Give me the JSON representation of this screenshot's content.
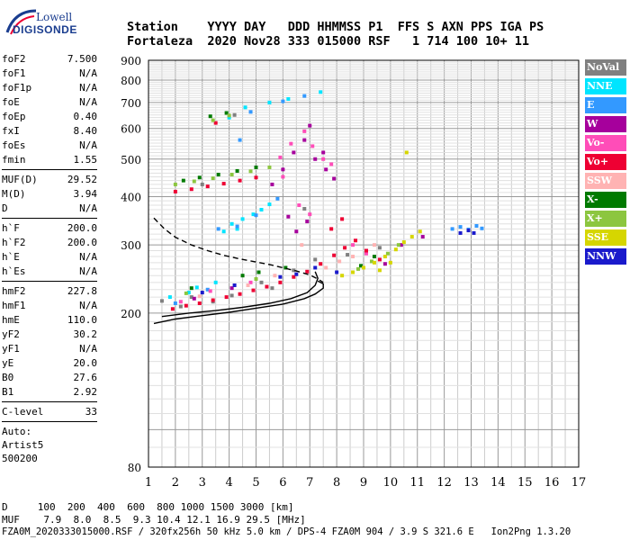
{
  "logo": {
    "line1": "Lowell",
    "line2": "DIGISONDE"
  },
  "header": {
    "line1": "Station    YYYY DAY   DDD HHMMSS P1  FFS S AXN PPS IGA PS",
    "line2": "Fortaleza  2020 Nov28 333 015000 RSF   1 714 100 10+ 11"
  },
  "params": {
    "group1": [
      {
        "name": "foF2",
        "value": "7.500"
      },
      {
        "name": "foF1",
        "value": "N/A"
      },
      {
        "name": "foF1p",
        "value": "N/A"
      },
      {
        "name": "foE",
        "value": "N/A"
      },
      {
        "name": "foEp",
        "value": "0.40"
      },
      {
        "name": "fxI",
        "value": "8.40"
      },
      {
        "name": "foEs",
        "value": "N/A"
      },
      {
        "name": "fmin",
        "value": "1.55"
      }
    ],
    "group2": [
      {
        "name": "MUF(D)",
        "value": "29.52"
      },
      {
        "name": "M(D)",
        "value": "3.94"
      },
      {
        "name": "D",
        "value": "N/A"
      }
    ],
    "group3": [
      {
        "name": "h`F",
        "value": "200.0"
      },
      {
        "name": "h`F2",
        "value": "200.0"
      },
      {
        "name": "h`E",
        "value": "N/A"
      },
      {
        "name": "h`Es",
        "value": "N/A"
      }
    ],
    "group4": [
      {
        "name": "hmF2",
        "value": "227.8"
      },
      {
        "name": "hmF1",
        "value": "N/A"
      },
      {
        "name": "hmE",
        "value": "110.0"
      },
      {
        "name": "yF2",
        "value": "30.2"
      },
      {
        "name": "yF1",
        "value": "N/A"
      },
      {
        "name": "yE",
        "value": "20.0"
      },
      {
        "name": "B0",
        "value": "27.6"
      },
      {
        "name": "B1",
        "value": "2.92"
      }
    ],
    "group5": [
      {
        "name": "C-level",
        "value": "33"
      }
    ],
    "auto": [
      "Auto:",
      "Artist5",
      "500200"
    ]
  },
  "legend": [
    {
      "label": "NoVal",
      "bg": "#808080",
      "fg": "#ffffff"
    },
    {
      "label": "NNE",
      "bg": "#00e5ff",
      "fg": "#ffffff"
    },
    {
      "label": "E",
      "bg": "#3399ff",
      "fg": "#ffffff"
    },
    {
      "label": "W",
      "bg": "#a6009c",
      "fg": "#ffffff"
    },
    {
      "label": "Vo-",
      "bg": "#ff4db8",
      "fg": "#ffffff"
    },
    {
      "label": "Vo+",
      "bg": "#ee0033",
      "fg": "#ffffff"
    },
    {
      "label": "SSW",
      "bg": "#ffb3b3",
      "fg": "#ffffff"
    },
    {
      "label": "X-",
      "bg": "#007a00",
      "fg": "#ffffff"
    },
    {
      "label": "X+",
      "bg": "#8cc63f",
      "fg": "#ffffff"
    },
    {
      "label": "SSE",
      "bg": "#d6d600",
      "fg": "#ffffff"
    },
    {
      "label": "NNW",
      "bg": "#1a1acc",
      "fg": "#ffffff"
    }
  ],
  "footer": {
    "line1": "D     100  200  400  600  800 1000 1500 3000 [km]",
    "line2": "MUF    7.9  8.0  8.5  9.3 10.4 12.1 16.9 29.5 [MHz]",
    "line3": "FZA0M_2020333015000.RSF / 320fx256h 50 kHz 5.0 km / DPS-4 FZA0M 904 / 3.9 S 321.6 E   Ion2Png 1.3.20"
  },
  "chart_data": {
    "type": "scatter",
    "title": "",
    "xlabel": "",
    "ylabel": "",
    "x_unit": "MHz (implicit)",
    "y_unit": "km (implicit)",
    "xlim": [
      1,
      17
    ],
    "ylim": [
      80,
      900
    ],
    "x_ticks": [
      1,
      2,
      3,
      4,
      5,
      6,
      7,
      8,
      9,
      10,
      11,
      12,
      13,
      14,
      15,
      16,
      17
    ],
    "y_ticks": [
      80,
      200,
      300,
      400,
      500,
      600,
      700,
      800,
      900
    ],
    "y_scale": "log",
    "grid": true,
    "series": [
      {
        "name": "NoVal",
        "color": "#808080",
        "points": [
          [
            1.5,
            215
          ],
          [
            2.2,
            208
          ],
          [
            3.4,
            214
          ],
          [
            4.1,
            222
          ],
          [
            5.6,
            232
          ],
          [
            6.4,
            258
          ],
          [
            7.2,
            275
          ],
          [
            3.0,
            430
          ],
          [
            4.2,
            650
          ],
          [
            8.4,
            283
          ],
          [
            9.6,
            295
          ],
          [
            6.8,
            372
          ],
          [
            2.6,
            220
          ],
          [
            5.2,
            240
          ]
        ]
      },
      {
        "name": "NNE",
        "color": "#00e5ff",
        "points": [
          [
            3.8,
            325
          ],
          [
            4.1,
            340
          ],
          [
            4.5,
            350
          ],
          [
            4.9,
            360
          ],
          [
            5.2,
            370
          ],
          [
            5.5,
            382
          ],
          [
            4.0,
            640
          ],
          [
            4.6,
            680
          ],
          [
            5.5,
            700
          ],
          [
            6.2,
            715
          ],
          [
            7.4,
            745
          ],
          [
            1.8,
            220
          ],
          [
            2.5,
            226
          ],
          [
            3.5,
            240
          ],
          [
            2.8,
            233
          ],
          [
            4.3,
            330
          ]
        ]
      },
      {
        "name": "E",
        "color": "#3399ff",
        "points": [
          [
            3.6,
            330
          ],
          [
            4.3,
            335
          ],
          [
            5.0,
            358
          ],
          [
            4.8,
            662
          ],
          [
            6.0,
            705
          ],
          [
            6.8,
            728
          ],
          [
            12.3,
            330
          ],
          [
            12.6,
            334
          ],
          [
            12.9,
            329
          ],
          [
            13.2,
            336
          ],
          [
            13.4,
            331
          ],
          [
            2.0,
            212
          ],
          [
            3.2,
            230
          ],
          [
            5.8,
            395
          ],
          [
            4.4,
            560
          ]
        ]
      },
      {
        "name": "W",
        "color": "#a6009c",
        "points": [
          [
            5.6,
            430
          ],
          [
            6.0,
            470
          ],
          [
            6.4,
            520
          ],
          [
            6.8,
            560
          ],
          [
            7.0,
            610
          ],
          [
            7.2,
            500
          ],
          [
            7.6,
            470
          ],
          [
            7.9,
            445
          ],
          [
            6.5,
            325
          ],
          [
            6.9,
            345
          ],
          [
            6.2,
            355
          ],
          [
            2.7,
            218
          ],
          [
            4.1,
            232
          ],
          [
            9.8,
            268
          ],
          [
            10.4,
            300
          ],
          [
            11.2,
            315
          ],
          [
            7.5,
            520
          ]
        ]
      },
      {
        "name": "Vo-",
        "color": "#ff4db8",
        "points": [
          [
            5.9,
            505
          ],
          [
            6.3,
            548
          ],
          [
            6.8,
            590
          ],
          [
            7.1,
            540
          ],
          [
            7.5,
            500
          ],
          [
            7.8,
            485
          ],
          [
            6.6,
            380
          ],
          [
            7.0,
            360
          ],
          [
            8.6,
            300
          ],
          [
            9.1,
            285
          ],
          [
            3.3,
            228
          ],
          [
            4.8,
            240
          ],
          [
            2.2,
            214
          ],
          [
            6.0,
            450
          ]
        ]
      },
      {
        "name": "Vo+",
        "color": "#ee0033",
        "points": [
          [
            1.9,
            205
          ],
          [
            2.4,
            209
          ],
          [
            2.9,
            212
          ],
          [
            3.4,
            216
          ],
          [
            3.9,
            220
          ],
          [
            4.4,
            224
          ],
          [
            4.9,
            229
          ],
          [
            5.4,
            234
          ],
          [
            5.9,
            240
          ],
          [
            6.4,
            248
          ],
          [
            6.9,
            256
          ],
          [
            7.4,
            268
          ],
          [
            7.9,
            282
          ],
          [
            8.3,
            295
          ],
          [
            8.7,
            308
          ],
          [
            9.1,
            290
          ],
          [
            9.6,
            275
          ],
          [
            2.0,
            412
          ],
          [
            2.6,
            418
          ],
          [
            3.2,
            425
          ],
          [
            3.8,
            432
          ],
          [
            4.4,
            440
          ],
          [
            5.0,
            448
          ],
          [
            3.5,
            620
          ],
          [
            7.8,
            330
          ],
          [
            8.2,
            350
          ]
        ]
      },
      {
        "name": "SSW",
        "color": "#ffb3b3",
        "points": [
          [
            7.6,
            262
          ],
          [
            8.1,
            272
          ],
          [
            8.6,
            280
          ],
          [
            5.7,
            250
          ],
          [
            4.7,
            236
          ],
          [
            6.7,
            300
          ],
          [
            2.9,
            221
          ],
          [
            9.4,
            300
          ]
        ]
      },
      {
        "name": "X-",
        "color": "#007a00",
        "points": [
          [
            2.3,
            440
          ],
          [
            2.9,
            448
          ],
          [
            3.6,
            456
          ],
          [
            4.3,
            466
          ],
          [
            5.0,
            476
          ],
          [
            3.9,
            658
          ],
          [
            3.3,
            645
          ],
          [
            4.5,
            250
          ],
          [
            5.1,
            255
          ],
          [
            6.1,
            262
          ],
          [
            2.6,
            232
          ],
          [
            8.9,
            265
          ],
          [
            9.4,
            280
          ]
        ]
      },
      {
        "name": "X+",
        "color": "#8cc63f",
        "points": [
          [
            2.0,
            430
          ],
          [
            2.7,
            438
          ],
          [
            3.4,
            446
          ],
          [
            4.1,
            456
          ],
          [
            4.8,
            465
          ],
          [
            5.5,
            476
          ],
          [
            3.4,
            630
          ],
          [
            4.0,
            648
          ],
          [
            8.8,
            260
          ],
          [
            9.3,
            272
          ],
          [
            9.9,
            285
          ],
          [
            10.3,
            300
          ],
          [
            2.4,
            225
          ],
          [
            5.0,
            245
          ]
        ]
      },
      {
        "name": "SSE",
        "color": "#d6d600",
        "points": [
          [
            8.6,
            255
          ],
          [
            9.0,
            262
          ],
          [
            9.4,
            270
          ],
          [
            9.8,
            280
          ],
          [
            10.2,
            292
          ],
          [
            10.5,
            305
          ],
          [
            10.8,
            315
          ],
          [
            11.1,
            325
          ],
          [
            10.6,
            520
          ],
          [
            9.6,
            258
          ],
          [
            8.2,
            250
          ],
          [
            10.0,
            270
          ]
        ]
      },
      {
        "name": "NNW",
        "color": "#1a1acc",
        "points": [
          [
            12.6,
            322
          ],
          [
            12.9,
            327
          ],
          [
            13.1,
            322
          ],
          [
            5.9,
            248
          ],
          [
            6.5,
            252
          ],
          [
            7.2,
            262
          ],
          [
            3.0,
            226
          ],
          [
            4.2,
            236
          ],
          [
            8.0,
            255
          ]
        ]
      }
    ],
    "lines": [
      {
        "name": "profile",
        "style": "solid",
        "color": "#000000",
        "points": [
          [
            1.2,
            188
          ],
          [
            2.0,
            193
          ],
          [
            3.0,
            197
          ],
          [
            4.0,
            201
          ],
          [
            5.0,
            206
          ],
          [
            6.0,
            211
          ],
          [
            6.8,
            218
          ],
          [
            7.2,
            224
          ],
          [
            7.5,
            232
          ],
          [
            7.5,
            238
          ],
          [
            7.3,
            242
          ]
        ]
      },
      {
        "name": "profile-2",
        "style": "solid",
        "color": "#000000",
        "points": [
          [
            1.5,
            196
          ],
          [
            2.5,
            200
          ],
          [
            3.5,
            203
          ],
          [
            4.5,
            207
          ],
          [
            5.5,
            212
          ],
          [
            6.3,
            218
          ],
          [
            6.9,
            226
          ],
          [
            7.2,
            236
          ],
          [
            7.3,
            246
          ],
          [
            7.2,
            256
          ]
        ]
      },
      {
        "name": "extrapolation",
        "style": "dashed",
        "color": "#000000",
        "points": [
          [
            1.2,
            352
          ],
          [
            1.6,
            330
          ],
          [
            2.0,
            314
          ],
          [
            2.6,
            300
          ],
          [
            3.2,
            290
          ],
          [
            3.8,
            282
          ],
          [
            4.4,
            276
          ],
          [
            5.0,
            271
          ],
          [
            5.5,
            267
          ],
          [
            6.0,
            262
          ],
          [
            6.5,
            257
          ],
          [
            7.0,
            251
          ],
          [
            7.3,
            245
          ],
          [
            7.5,
            240
          ]
        ]
      }
    ]
  }
}
